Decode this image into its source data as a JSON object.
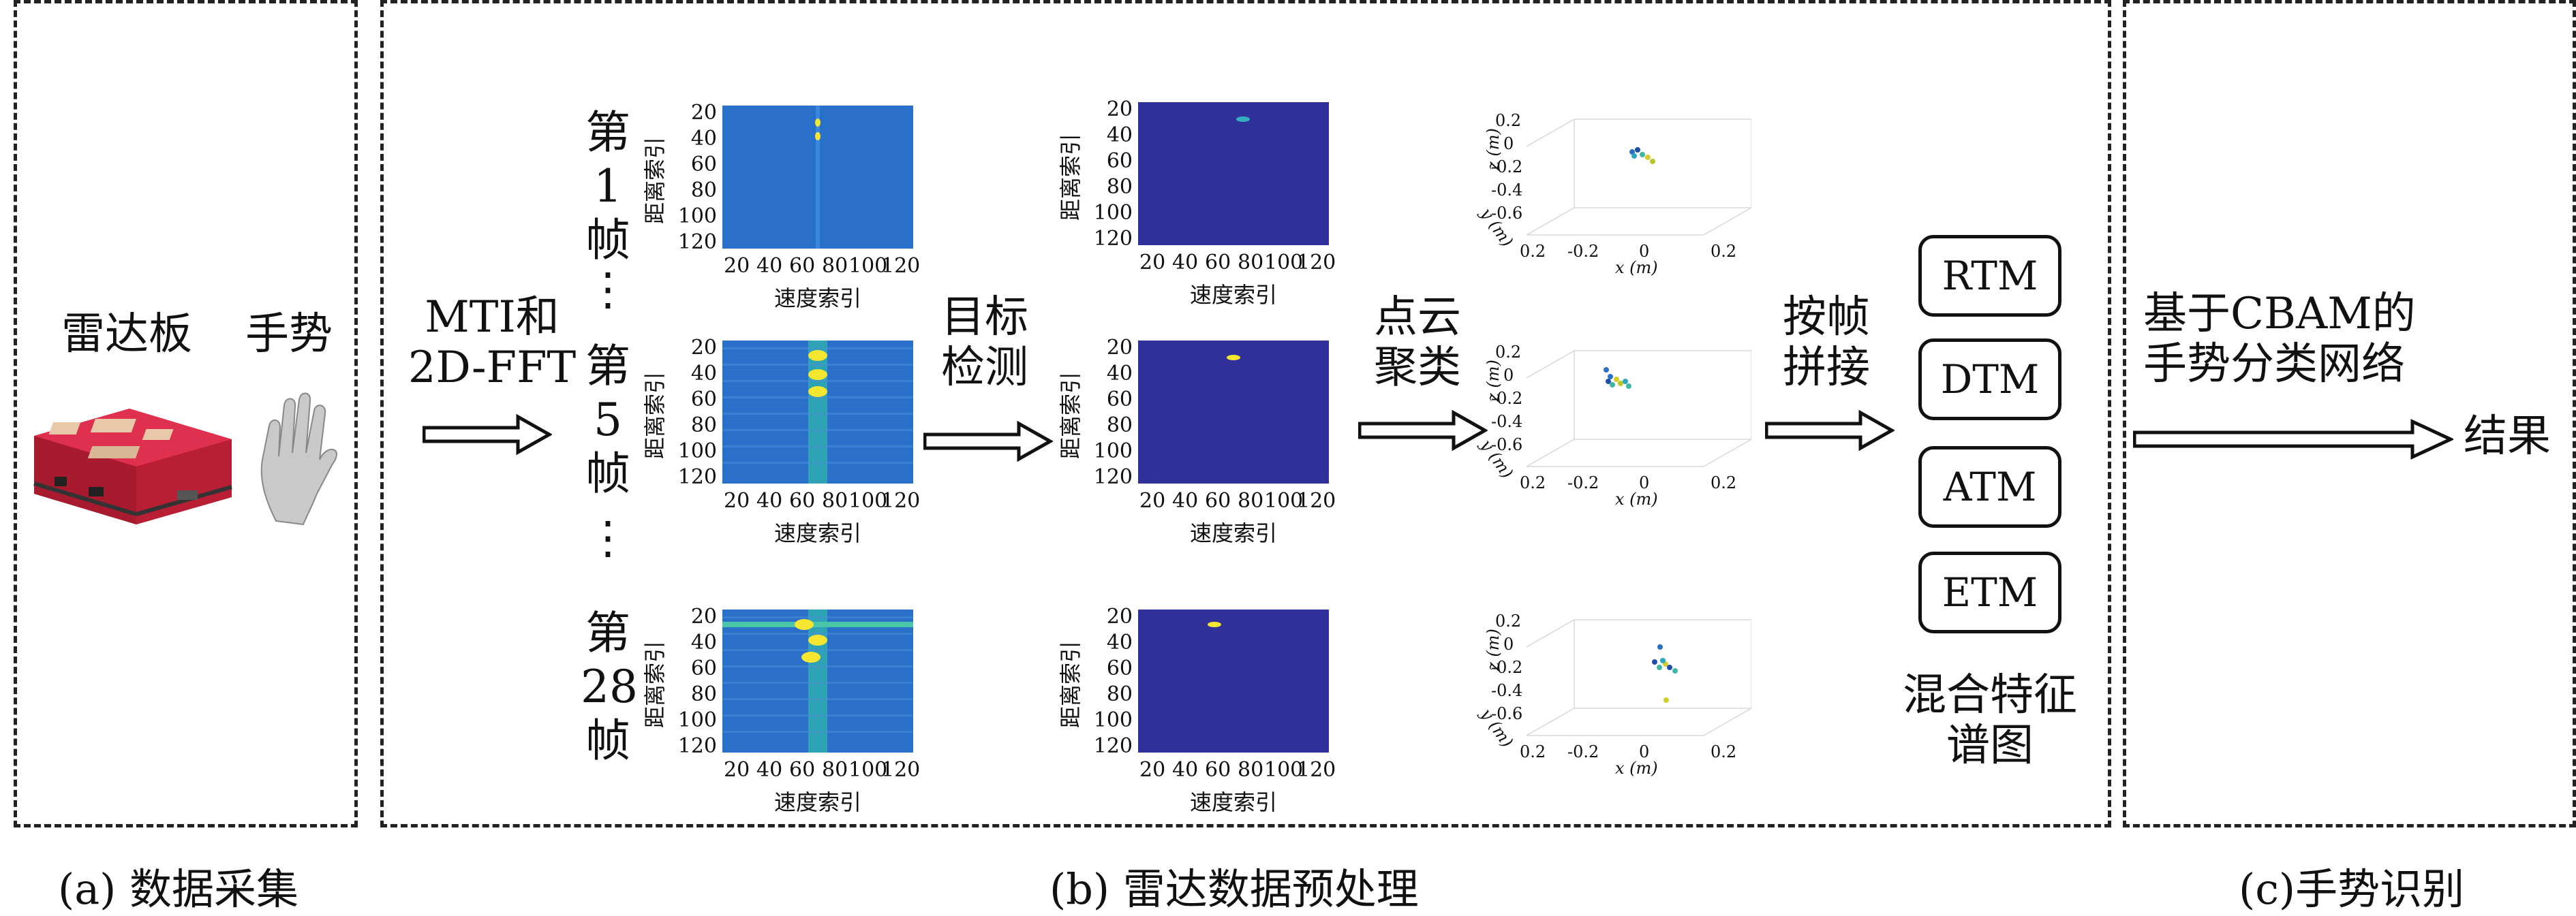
{
  "panels": {
    "a_caption": "(a) 数据采集",
    "b_caption": "(b) 雷达数据预处理",
    "c_caption": "(c)手势识别"
  },
  "acquisition": {
    "radar_label": "雷达板",
    "gesture_label": "手势"
  },
  "steps": {
    "mti": [
      "MTI和",
      "2D-FFT"
    ],
    "detect": [
      "目标",
      "检测"
    ],
    "cluster": [
      "点云",
      "聚类"
    ],
    "stitch": [
      "按帧",
      "拼接"
    ],
    "network": [
      "基于CBAM的",
      "手势分类网络"
    ],
    "result": "结果"
  },
  "frames": [
    {
      "label": [
        "第",
        "1",
        "帧"
      ]
    },
    {
      "label": [
        "第",
        "5",
        "帧"
      ]
    },
    {
      "label": [
        "第",
        "28",
        "帧"
      ]
    }
  ],
  "ellipsis": "⋮",
  "rd_map": {
    "ylabel": "距离索引",
    "xlabel": "速度索引",
    "yticks": [
      "20",
      "40",
      "60",
      "80",
      "100",
      "120"
    ],
    "xticks": [
      "20",
      "40",
      "60",
      "80",
      "100",
      "120"
    ],
    "colors": {
      "background": "#2a6fc9",
      "peak": "#f5e632",
      "detected_bg": "#30309a"
    }
  },
  "point_cloud": {
    "zlabel": "z (m)",
    "ylabel": "y (m)",
    "xlabel": "x (m)",
    "zticks_first": [
      "0.2",
      "0",
      "-0.2",
      "-0.4",
      "-0.6"
    ],
    "zticks": [
      "0.2",
      "0",
      "-0.2",
      "-0.4",
      "-0.6"
    ],
    "xticks": [
      "-0.2",
      "0",
      "0.2"
    ],
    "yticks": [
      "0.2"
    ]
  },
  "features": [
    "RTM",
    "DTM",
    "ATM",
    "ETM"
  ],
  "features_caption": [
    "混合特征",
    "谱图"
  ]
}
